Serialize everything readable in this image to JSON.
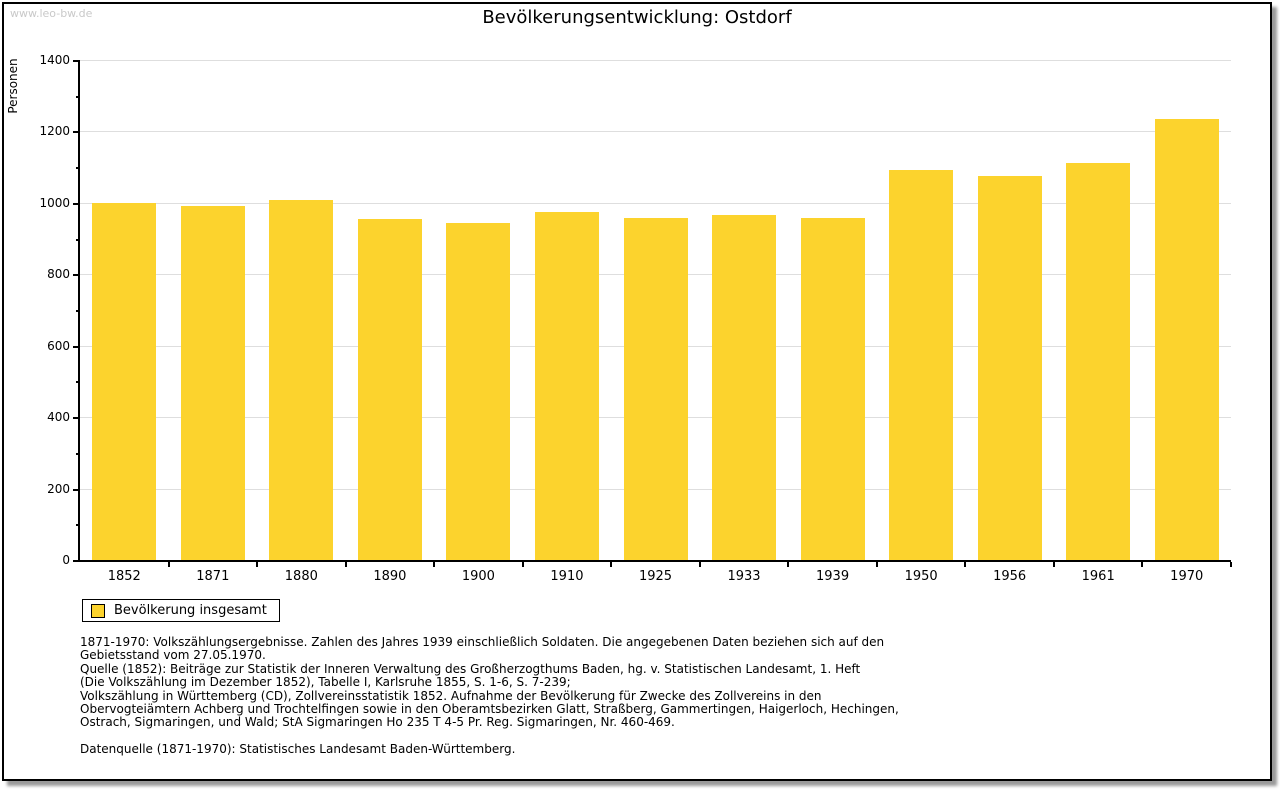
{
  "watermark": "www.leo-bw.de",
  "header": {
    "title": "Bevölkerungsentwicklung: Ostdorf"
  },
  "chart_data": {
    "type": "bar",
    "title": "Bevölkerungsentwicklung: Ostdorf",
    "xlabel": "",
    "ylabel": "Personen",
    "categories": [
      "1852",
      "1871",
      "1880",
      "1890",
      "1900",
      "1910",
      "1925",
      "1933",
      "1939",
      "1950",
      "1956",
      "1961",
      "1970"
    ],
    "values": [
      1000,
      991,
      1007,
      955,
      943,
      975,
      957,
      966,
      958,
      1091,
      1076,
      1112,
      1235
    ],
    "ylim": [
      0,
      1400
    ],
    "yticks": [
      0,
      200,
      400,
      600,
      800,
      1000,
      1200,
      1400
    ],
    "ytick_interval": 200,
    "ytick_minor_interval": 100,
    "grid": true,
    "legend_position": "bottom-left",
    "legend_entries": [
      "Bevölkerung insgesamt"
    ]
  },
  "legend": {
    "label": "Bevölkerung insgesamt"
  },
  "colors": {
    "bar": "#FCD32D",
    "grid": "#dedede",
    "axis": "#000000",
    "watermark": "#c9c9c9"
  },
  "footnotes": {
    "lines": [
      "1871-1970: Volkszählungsergebnisse. Zahlen des Jahres 1939 einschließlich Soldaten. Die angegebenen Daten beziehen sich auf den",
      "Gebietsstand vom 27.05.1970.",
      "Quelle (1852): Beiträge zur Statistik der Inneren Verwaltung des Großherzogthums Baden, hg. v. Statistischen Landesamt, 1. Heft",
      "(Die Volkszählung im Dezember 1852), Tabelle I, Karlsruhe 1855, S. 1-6, S. 7-239;",
      "Volkszählung in Württemberg (CD), Zollvereinsstatistik 1852. Aufnahme der Bevölkerung für Zwecke des Zollvereins in den",
      "Obervogteiämtern Achberg und Trochtelfingen sowie in den Oberamtsbezirken Glatt, Straßberg, Gammertingen, Haigerloch, Hechingen,",
      "Ostrach, Sigmaringen, und Wald; StA Sigmaringen Ho 235 T 4-5 Pr. Reg. Sigmaringen, Nr. 460-469."
    ],
    "source": "Datenquelle (1871-1970): Statistisches Landesamt Baden-Württemberg."
  }
}
